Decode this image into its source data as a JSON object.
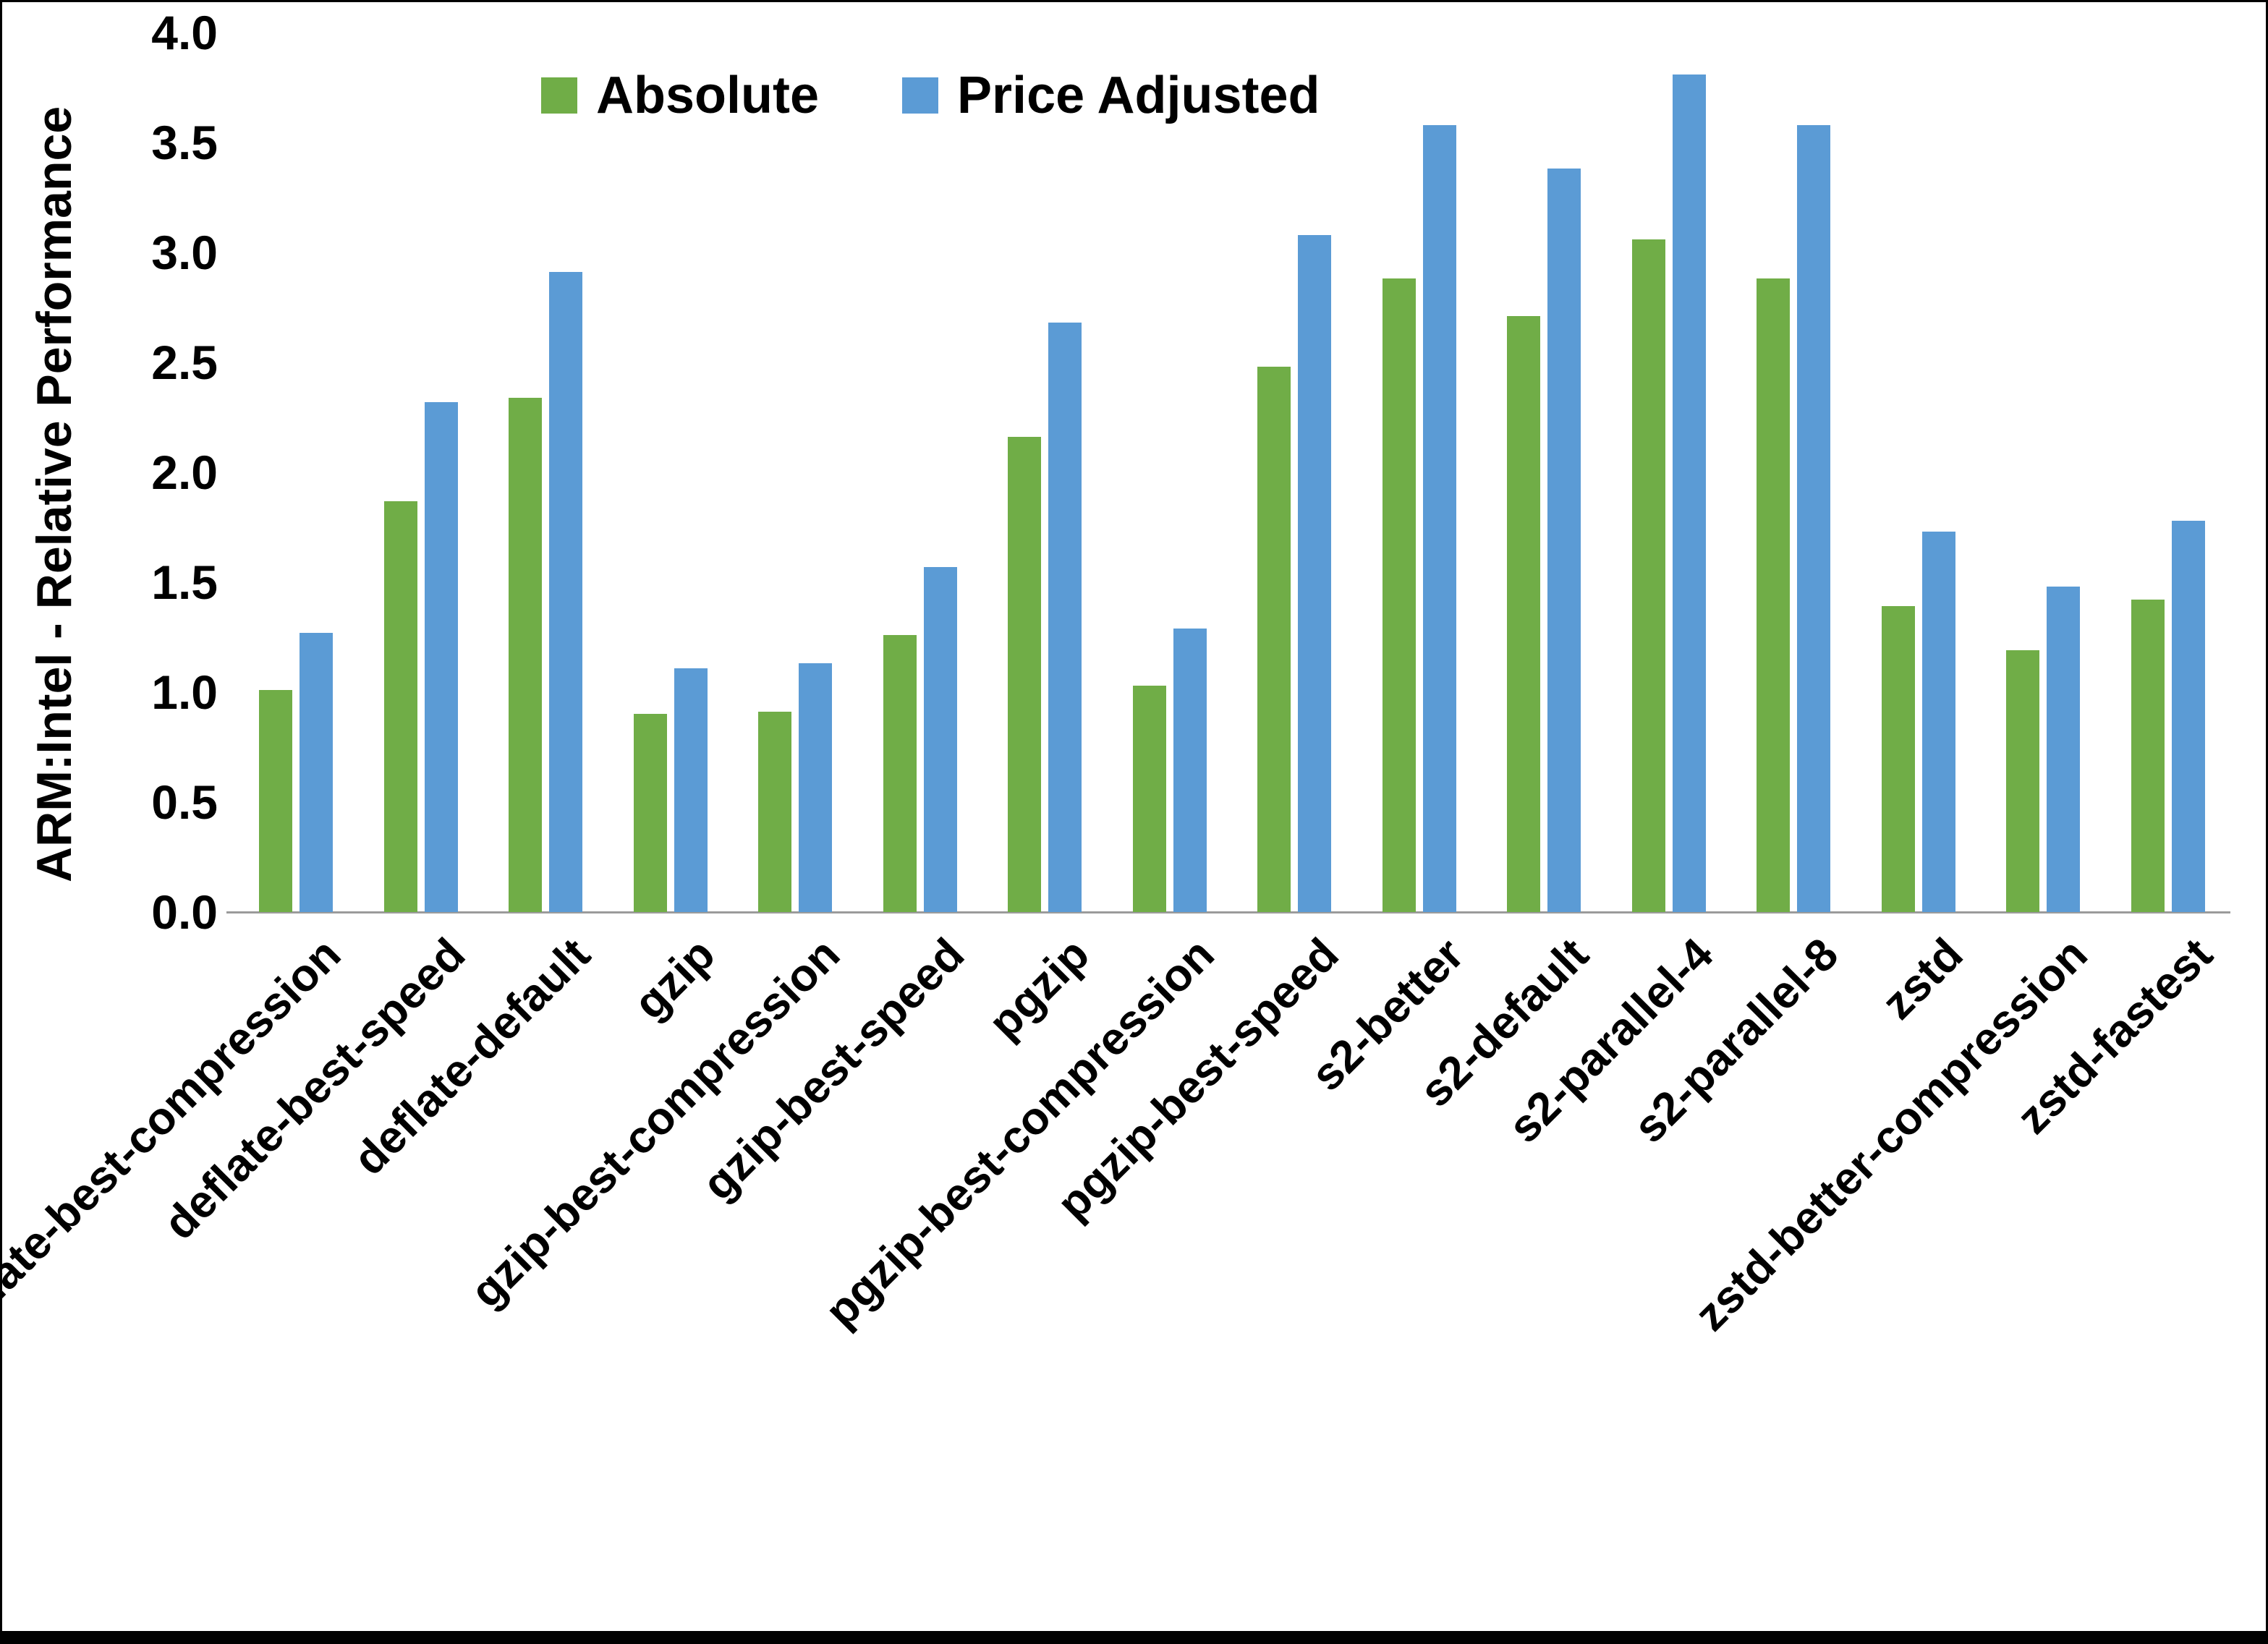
{
  "chart_data": {
    "type": "bar",
    "ylabel": "ARM:Intel - Relative Performance",
    "xlabel": "",
    "ylim": [
      0,
      4.0
    ],
    "yticks": [
      0.0,
      0.5,
      1.0,
      1.5,
      2.0,
      2.5,
      3.0,
      3.5,
      4.0
    ],
    "grid": false,
    "legend_position": "top",
    "axis_line_color": "#9B9B9B",
    "categories": [
      "deflate-best-compression",
      "deflate-best-speed",
      "deflate-default",
      "gzip",
      "gzip-best-compression",
      "gzip-best-speed",
      "pgzip",
      "pgzip-best-compression",
      "pgzip-best-speed",
      "s2-better",
      "s2-default",
      "s2-parallel-4",
      "s2-parallel-8",
      "zstd",
      "zstd-better-compression",
      "zstd-fastest"
    ],
    "series": [
      {
        "name": "Absolute",
        "color": "#70AD47",
        "values": [
          1.01,
          1.87,
          2.34,
          0.9,
          0.91,
          1.26,
          2.16,
          1.03,
          2.48,
          2.88,
          2.71,
          3.06,
          2.88,
          1.39,
          1.19,
          1.42
        ]
      },
      {
        "name": "Price Adjusted",
        "color": "#5B9BD5",
        "values": [
          1.27,
          2.32,
          2.91,
          1.11,
          1.13,
          1.57,
          2.68,
          1.29,
          3.08,
          3.58,
          3.38,
          3.81,
          3.58,
          1.73,
          1.48,
          1.78
        ]
      }
    ]
  }
}
